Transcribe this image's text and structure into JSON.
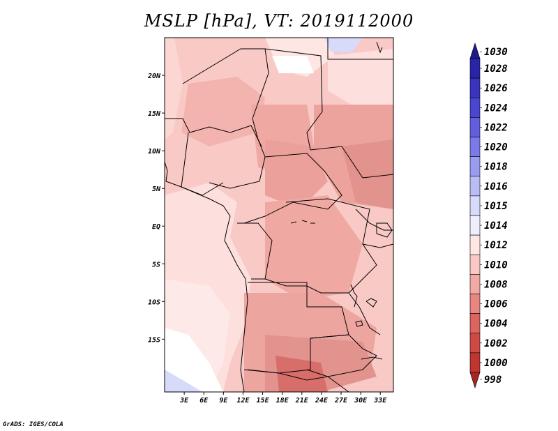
{
  "title": "MSLP [hPa], VT: 2019112000",
  "credit": "GrADS: IGES/COLA",
  "map": {
    "lon_range": [
      0,
      35
    ],
    "lat_range": [
      -22,
      25
    ],
    "lat_ticks": [
      {
        "value": 20,
        "label": "20N"
      },
      {
        "value": 15,
        "label": "15N"
      },
      {
        "value": 10,
        "label": "10N"
      },
      {
        "value": 5,
        "label": "5N"
      },
      {
        "value": 0,
        "label": "EQ"
      },
      {
        "value": -5,
        "label": "5S"
      },
      {
        "value": -10,
        "label": "10S"
      },
      {
        "value": -15,
        "label": "15S"
      }
    ],
    "lon_ticks": [
      {
        "value": 3,
        "label": "3E"
      },
      {
        "value": 6,
        "label": "6E"
      },
      {
        "value": 9,
        "label": "9E"
      },
      {
        "value": 12,
        "label": "12E"
      },
      {
        "value": 15,
        "label": "15E"
      },
      {
        "value": 18,
        "label": "18E"
      },
      {
        "value": 21,
        "label": "21E"
      },
      {
        "value": 24,
        "label": "24E"
      },
      {
        "value": 27,
        "label": "27E"
      },
      {
        "value": 30,
        "label": "30E"
      },
      {
        "value": 33,
        "label": "33E"
      }
    ]
  },
  "colorbar": {
    "levels": [
      {
        "label": "1030",
        "color": "#1e1a8c"
      },
      {
        "label": "1028",
        "color": "#2a25a8"
      },
      {
        "label": "1026",
        "color": "#3a34c0"
      },
      {
        "label": "1024",
        "color": "#4a46d2"
      },
      {
        "label": "1022",
        "color": "#615fde"
      },
      {
        "label": "1020",
        "color": "#7a7be8"
      },
      {
        "label": "1018",
        "color": "#9a9cf0"
      },
      {
        "label": "1016",
        "color": "#babcf6"
      },
      {
        "label": "1015",
        "color": "#d8dafa"
      },
      {
        "label": "1014",
        "color": "#eeeefc"
      },
      {
        "label": "1012",
        "color": "#fde6e4"
      },
      {
        "label": "1010",
        "color": "#f9c9c6"
      },
      {
        "label": "1008",
        "color": "#f2aaa6"
      },
      {
        "label": "1006",
        "color": "#e88782"
      },
      {
        "label": "1004",
        "color": "#dc6560"
      },
      {
        "label": "1002",
        "color": "#d04a45"
      },
      {
        "label": "1000",
        "color": "#c03530"
      },
      {
        "label": "998",
        "color": "#a82520"
      }
    ]
  }
}
